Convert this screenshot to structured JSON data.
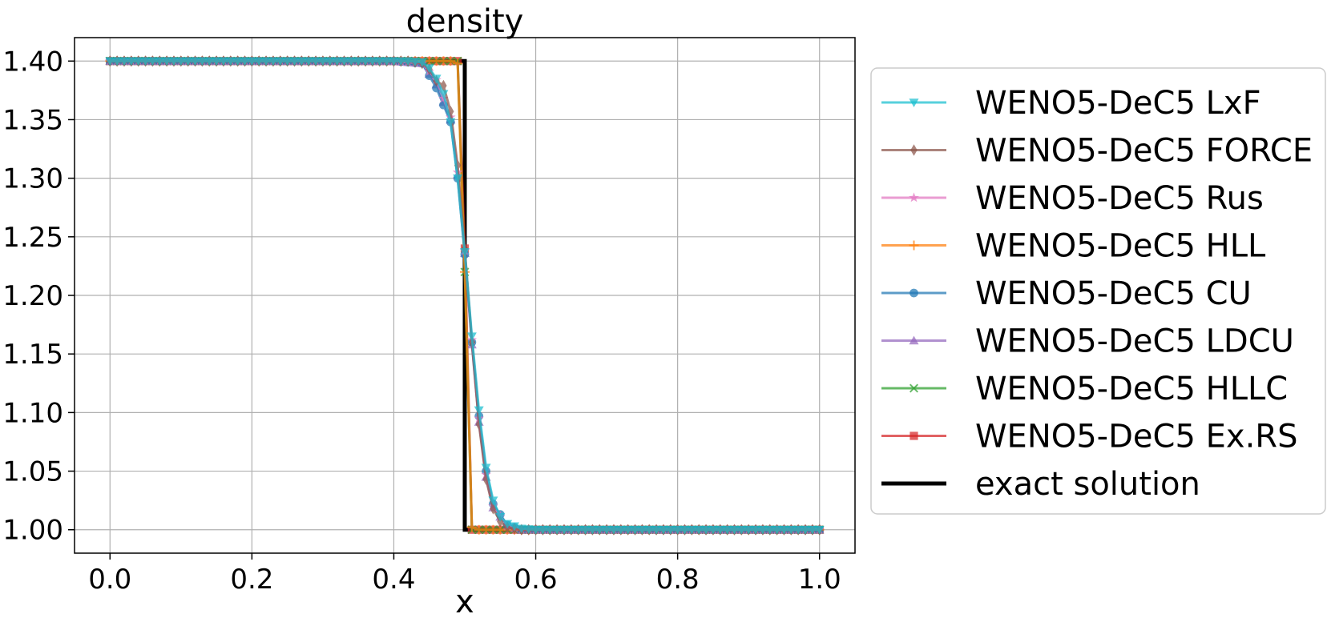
{
  "chart_data": {
    "type": "line",
    "title": "density",
    "xlabel": "x",
    "ylabel": "",
    "xlim": [
      -0.05,
      1.05
    ],
    "ylim": [
      0.98,
      1.42
    ],
    "xticks": [
      "0.0",
      "0.2",
      "0.4",
      "0.6",
      "0.8",
      "1.0"
    ],
    "yticks": [
      "1.00",
      "1.05",
      "1.10",
      "1.15",
      "1.20",
      "1.25",
      "1.30",
      "1.35",
      "1.40"
    ],
    "grid": true,
    "legend_position": "right-outside",
    "exact_solution": {
      "name": "exact solution",
      "color": "#000000",
      "x": [
        0.0,
        0.5,
        0.5,
        1.0
      ],
      "y": [
        1.4,
        1.4,
        1.0,
        1.0
      ]
    },
    "series": [
      {
        "name": "WENO5-DeC5 LxF",
        "color": "#17becf",
        "marker": "triangle-down",
        "points": [
          [
            0.0,
            1.4
          ],
          [
            0.4,
            1.4
          ],
          [
            0.42,
            1.4
          ],
          [
            0.44,
            1.399
          ],
          [
            0.45,
            1.394
          ],
          [
            0.46,
            1.385
          ],
          [
            0.47,
            1.372
          ],
          [
            0.48,
            1.348
          ],
          [
            0.49,
            1.3
          ],
          [
            0.5,
            1.237
          ],
          [
            0.51,
            1.165
          ],
          [
            0.52,
            1.102
          ],
          [
            0.53,
            1.053
          ],
          [
            0.54,
            1.025
          ],
          [
            0.55,
            1.011
          ],
          [
            0.56,
            1.005
          ],
          [
            0.58,
            1.001
          ],
          [
            0.6,
            1.0
          ],
          [
            1.0,
            1.0
          ]
        ]
      },
      {
        "name": "WENO5-DeC5 FORCE",
        "color": "#8c564b",
        "marker": "diamond",
        "points": [
          [
            0.0,
            1.4
          ],
          [
            0.4,
            1.4
          ],
          [
            0.42,
            1.4
          ],
          [
            0.44,
            1.398
          ],
          [
            0.45,
            1.393
          ],
          [
            0.46,
            1.383
          ],
          [
            0.47,
            1.379
          ],
          [
            0.48,
            1.357
          ],
          [
            0.49,
            1.311
          ],
          [
            0.5,
            1.24
          ],
          [
            0.51,
            1.16
          ],
          [
            0.52,
            1.09
          ],
          [
            0.53,
            1.043
          ],
          [
            0.54,
            1.018
          ],
          [
            0.55,
            1.007
          ],
          [
            0.56,
            1.002
          ],
          [
            0.58,
            1.0
          ],
          [
            1.0,
            1.0
          ]
        ]
      },
      {
        "name": "WENO5-DeC5 Rus",
        "color": "#e377c2",
        "marker": "star",
        "points": [
          [
            0.0,
            1.4
          ],
          [
            0.4,
            1.4
          ],
          [
            0.44,
            1.398
          ],
          [
            0.46,
            1.384
          ],
          [
            0.48,
            1.352
          ],
          [
            0.49,
            1.305
          ],
          [
            0.5,
            1.238
          ],
          [
            0.51,
            1.162
          ],
          [
            0.52,
            1.095
          ],
          [
            0.53,
            1.047
          ],
          [
            0.54,
            1.02
          ],
          [
            0.56,
            1.003
          ],
          [
            0.58,
            1.0
          ],
          [
            1.0,
            1.0
          ]
        ]
      },
      {
        "name": "WENO5-DeC5 HLL",
        "color": "#ff7f0e",
        "marker": "plus",
        "points": [
          [
            0.0,
            1.4
          ],
          [
            0.48,
            1.4
          ],
          [
            0.49,
            1.398
          ],
          [
            0.5,
            1.22
          ],
          [
            0.51,
            1.002
          ],
          [
            0.52,
            1.0
          ],
          [
            1.0,
            1.0
          ]
        ]
      },
      {
        "name": "WENO5-DeC5 CU",
        "color": "#1f77b4",
        "marker": "circle",
        "points": [
          [
            0.0,
            1.4
          ],
          [
            0.4,
            1.4
          ],
          [
            0.44,
            1.398
          ],
          [
            0.46,
            1.377
          ],
          [
            0.48,
            1.348
          ],
          [
            0.49,
            1.3
          ],
          [
            0.5,
            1.235
          ],
          [
            0.51,
            1.16
          ],
          [
            0.52,
            1.097
          ],
          [
            0.53,
            1.05
          ],
          [
            0.54,
            1.022
          ],
          [
            0.56,
            1.004
          ],
          [
            0.58,
            1.0
          ],
          [
            1.0,
            1.0
          ]
        ]
      },
      {
        "name": "WENO5-DeC5 LDCU",
        "color": "#9467bd",
        "marker": "triangle-up",
        "points": [
          [
            0.0,
            1.4
          ],
          [
            0.4,
            1.4
          ],
          [
            0.44,
            1.398
          ],
          [
            0.46,
            1.38
          ],
          [
            0.48,
            1.35
          ],
          [
            0.49,
            1.303
          ],
          [
            0.5,
            1.236
          ],
          [
            0.51,
            1.158
          ],
          [
            0.52,
            1.092
          ],
          [
            0.53,
            1.045
          ],
          [
            0.54,
            1.019
          ],
          [
            0.56,
            1.003
          ],
          [
            0.58,
            1.0
          ],
          [
            1.0,
            1.0
          ]
        ]
      },
      {
        "name": "WENO5-DeC5 HLLC",
        "color": "#2ca02c",
        "marker": "x",
        "points": [
          [
            0.0,
            1.4
          ],
          [
            0.49,
            1.4
          ],
          [
            0.5,
            1.22
          ],
          [
            0.51,
            1.0
          ],
          [
            1.0,
            1.0
          ]
        ]
      },
      {
        "name": "WENO5-DeC5 Ex.RS",
        "color": "#d62728",
        "marker": "square",
        "points": [
          [
            0.0,
            1.4
          ],
          [
            0.49,
            1.4
          ],
          [
            0.5,
            1.24
          ],
          [
            0.51,
            1.0
          ],
          [
            1.0,
            1.0
          ]
        ]
      }
    ]
  }
}
